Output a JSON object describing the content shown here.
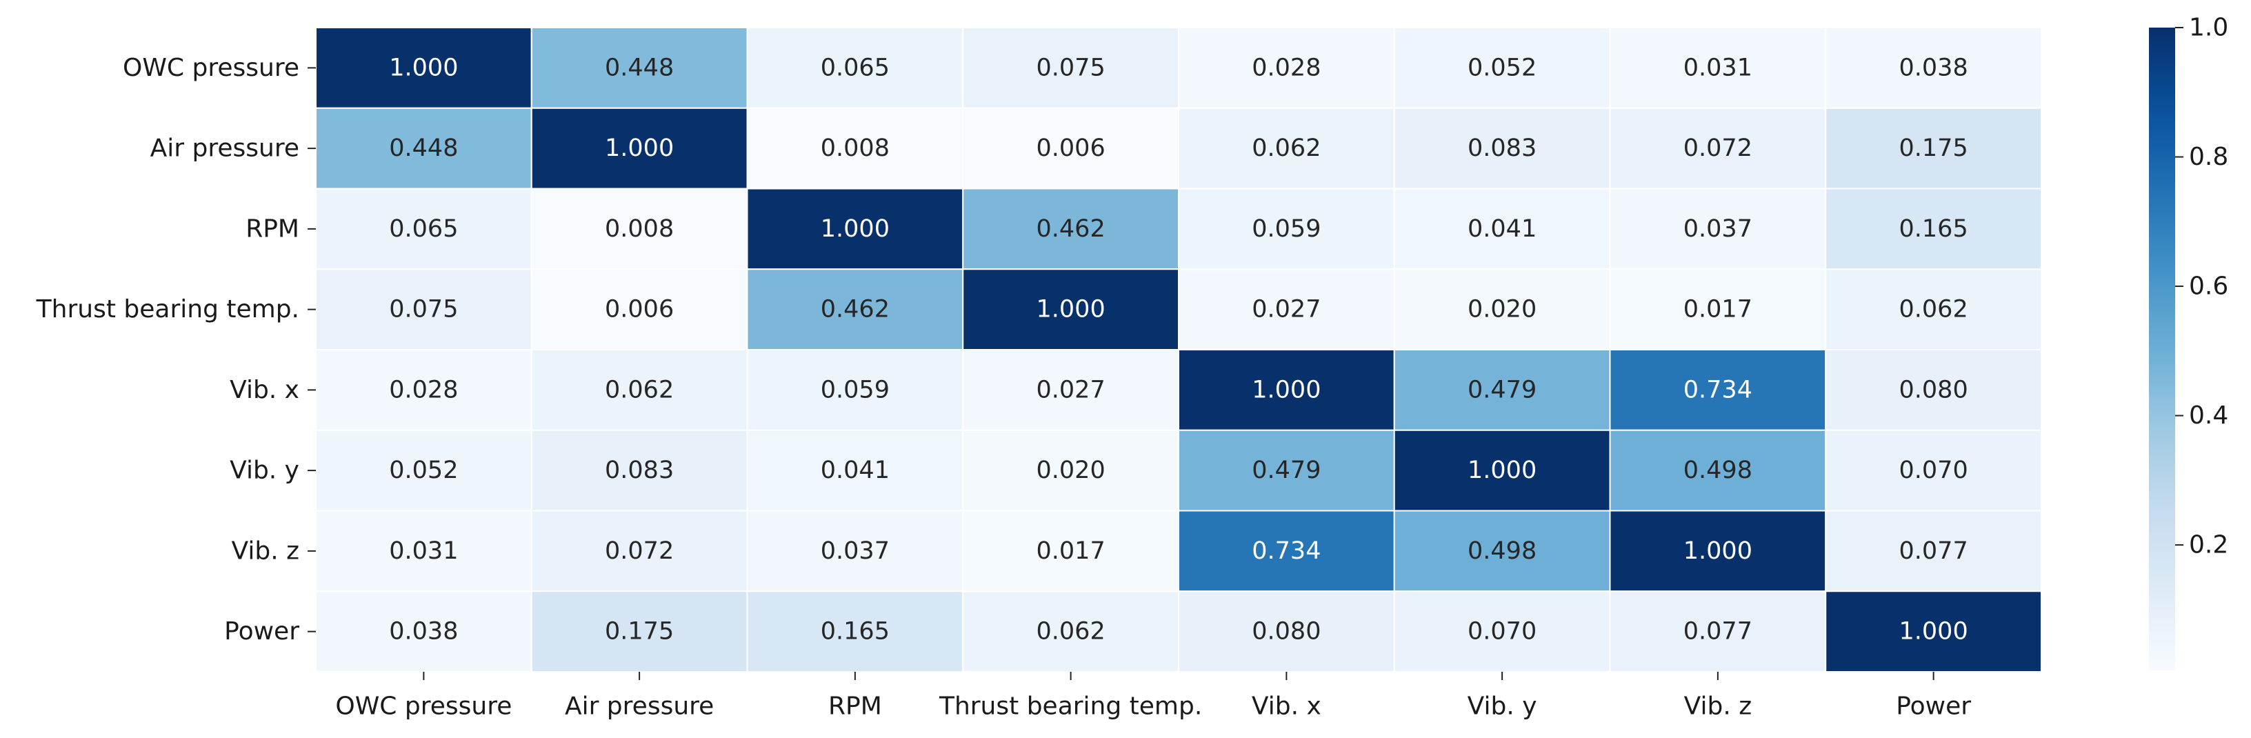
{
  "chart_data": {
    "type": "heatmap",
    "title": "",
    "xlabel": "",
    "ylabel": "",
    "row_labels": [
      "OWC pressure",
      "Air pressure",
      "RPM",
      "Thrust bearing temp.",
      "Vib. x",
      "Vib. y",
      "Vib. z",
      "Power"
    ],
    "col_labels": [
      "OWC pressure",
      "Air pressure",
      "RPM",
      "Thrust bearing temp.",
      "Vib. x",
      "Vib. y",
      "Vib. z",
      "Power"
    ],
    "values": [
      [
        1.0,
        0.448,
        0.065,
        0.075,
        0.028,
        0.052,
        0.031,
        0.038
      ],
      [
        0.448,
        1.0,
        0.008,
        0.006,
        0.062,
        0.083,
        0.072,
        0.175
      ],
      [
        0.065,
        0.008,
        1.0,
        0.462,
        0.059,
        0.041,
        0.037,
        0.165
      ],
      [
        0.075,
        0.006,
        0.462,
        1.0,
        0.027,
        0.02,
        0.017,
        0.062
      ],
      [
        0.028,
        0.062,
        0.059,
        0.027,
        1.0,
        0.479,
        0.734,
        0.08
      ],
      [
        0.052,
        0.083,
        0.041,
        0.02,
        0.479,
        1.0,
        0.498,
        0.07
      ],
      [
        0.031,
        0.072,
        0.037,
        0.017,
        0.734,
        0.498,
        1.0,
        0.077
      ],
      [
        0.038,
        0.175,
        0.165,
        0.062,
        0.08,
        0.07,
        0.077,
        1.0
      ]
    ],
    "value_format": "3 decimals",
    "colormap": "Blues",
    "color_range": [
      0.006,
      1.0
    ],
    "colorbar_ticks": [
      "0.2",
      "0.4",
      "0.6",
      "0.8",
      "1.0"
    ],
    "cell_border_color": "#ffffff",
    "grid": false,
    "legend": "colorbar-right"
  }
}
